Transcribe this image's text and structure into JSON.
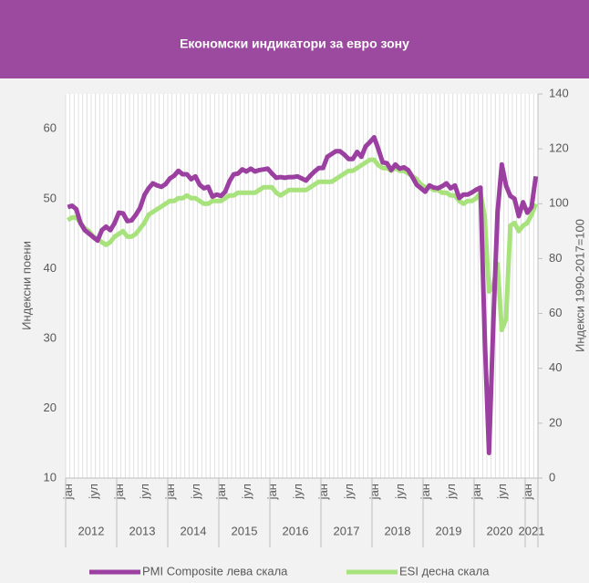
{
  "chart_data": {
    "type": "line",
    "title": "Економски индикатори за евро зону",
    "y_label": "Индексни поени",
    "y2_label": "Индекси 1990-2017=100",
    "categories": [
      "јан",
      null,
      null,
      null,
      null,
      null,
      "јул",
      null,
      null,
      null,
      null,
      null,
      "јан",
      null,
      null,
      null,
      null,
      null,
      "јул",
      null,
      null,
      null,
      null,
      null,
      "јан",
      null,
      null,
      null,
      null,
      null,
      "јул",
      null,
      null,
      null,
      null,
      null,
      "јан",
      null,
      null,
      null,
      null,
      null,
      "јул",
      null,
      null,
      null,
      null,
      null,
      "јан",
      null,
      null,
      null,
      null,
      null,
      "јул",
      null,
      null,
      null,
      null,
      null,
      "јан",
      null,
      null,
      null,
      null,
      null,
      "јул",
      null,
      null,
      null,
      null,
      null,
      "јан",
      null,
      null,
      null,
      null,
      null,
      "јул",
      null,
      null,
      null,
      null,
      null,
      "јан",
      null,
      null,
      null,
      null,
      null,
      "јул",
      null,
      null,
      null,
      null,
      null,
      "јан",
      null,
      null,
      null,
      null,
      null,
      "јул",
      null,
      null,
      null,
      null,
      null,
      "јан",
      null,
      null
    ],
    "years": [
      "2012",
      "2013",
      "2014",
      "2015",
      "2016",
      "2017",
      "2018",
      "2019",
      "2020",
      "2021"
    ],
    "series": [
      {
        "name": "PMI Composite лева скала",
        "color": "#9b3fa0",
        "axis": "y",
        "values": [
          48.8,
          49.0,
          48.5,
          46.5,
          45.5,
          45.0,
          44.5,
          44.0,
          45.5,
          46.0,
          45.5,
          46.5,
          48.0,
          47.9,
          46.8,
          46.9,
          47.7,
          48.7,
          50.5,
          51.5,
          52.2,
          51.9,
          51.7,
          52.1,
          52.9,
          53.3,
          54.0,
          53.5,
          53.5,
          52.8,
          53.2,
          52.0,
          51.5,
          51.7,
          50.3,
          50.6,
          50.4,
          51.0,
          52.5,
          53.5,
          53.6,
          54.2,
          53.9,
          54.3,
          53.9,
          54.1,
          54.2,
          54.3,
          53.6,
          53.0,
          53.1,
          53.0,
          53.1,
          53.1,
          53.2,
          52.9,
          52.6,
          53.3,
          53.9,
          54.4,
          54.4,
          56.0,
          56.4,
          56.8,
          56.8,
          56.3,
          55.7,
          55.7,
          56.7,
          56.0,
          57.5,
          58.1,
          58.8,
          57.1,
          55.2,
          55.1,
          54.1,
          54.9,
          54.3,
          54.5,
          54.1,
          53.1,
          52.0,
          51.5,
          51.0,
          51.9,
          51.6,
          51.5,
          51.8,
          52.2,
          51.5,
          51.9,
          50.1,
          50.6,
          50.6,
          50.9,
          51.3,
          51.6,
          30.0,
          13.6,
          32.0,
          48.0,
          54.9,
          51.9,
          50.4,
          50.0,
          47.5,
          49.5,
          48.0,
          48.8,
          53.2
        ]
      },
      {
        "name": "ESI десна скала",
        "color": "#a8e27c",
        "axis": "y2",
        "values": [
          94,
          95,
          95,
          93,
          91,
          90,
          88,
          87,
          86,
          85,
          86,
          88,
          89,
          90,
          88,
          88,
          89,
          91,
          93,
          96,
          97,
          98,
          99,
          100,
          101,
          101,
          102,
          102,
          103,
          102,
          102,
          101,
          100,
          100,
          101,
          101,
          101,
          102,
          103,
          103,
          104,
          104,
          104,
          104,
          104,
          105,
          106,
          106,
          106,
          104,
          103,
          104,
          105,
          105,
          105,
          105,
          105,
          106,
          107,
          108,
          108,
          108,
          108,
          109,
          110,
          111,
          112,
          112,
          113,
          114,
          115,
          116,
          116,
          114,
          113,
          113,
          112,
          113,
          112,
          112,
          111,
          110,
          109,
          107,
          106,
          106,
          105,
          105,
          104,
          104,
          103,
          103,
          101,
          100,
          101,
          101,
          102,
          104,
          95,
          68,
          70,
          78,
          54,
          58,
          92,
          93,
          90,
          92,
          93,
          96,
          100
        ]
      }
    ],
    "ylim": [
      10,
      65
    ],
    "yticks": [
      10,
      20,
      30,
      40,
      50,
      60
    ],
    "y2lim": [
      0,
      140
    ],
    "y2ticks": [
      0,
      20,
      40,
      60,
      80,
      100,
      120,
      140
    ],
    "xgrid": true,
    "legend": "bottom"
  }
}
